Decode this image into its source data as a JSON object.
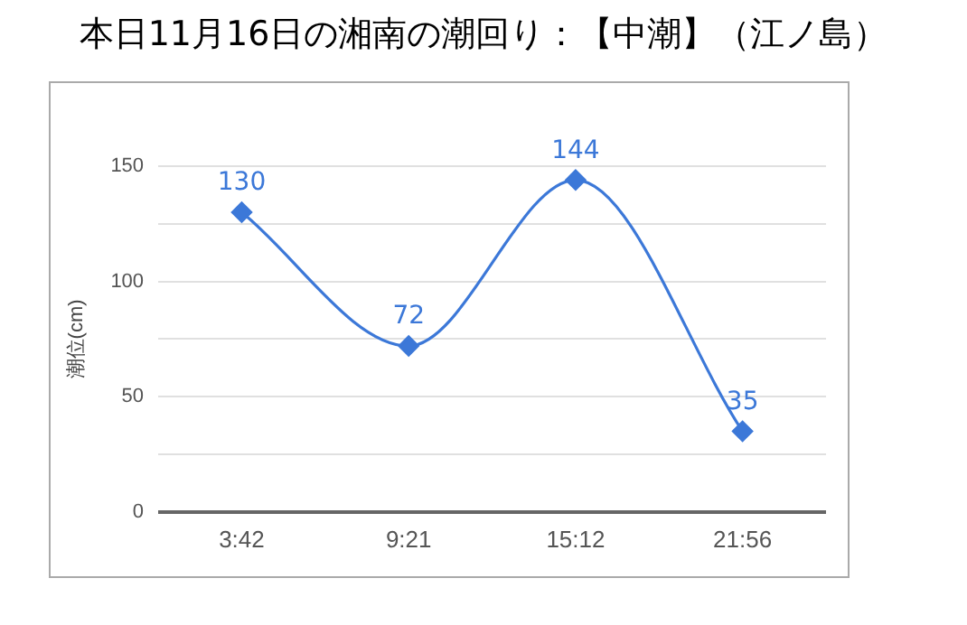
{
  "chart_data": {
    "type": "line",
    "title": "本日11月16日の湘南の潮回り：【中潮】（江ノ島）",
    "ylabel": "潮位(cm)",
    "categories": [
      "3:42",
      "9:21",
      "15:12",
      "21:56"
    ],
    "series": [
      {
        "color": "#3c78d8",
        "values": [
          130,
          72,
          144,
          35
        ]
      }
    ],
    "ylim": [
      0,
      150
    ],
    "yticks": [
      0,
      {
        "value": 25,
        "label": null
      },
      50,
      {
        "value": 75,
        "label": null
      },
      100,
      {
        "value": 125,
        "label": null
      },
      150
    ],
    "grid": "y",
    "legend": false,
    "marker": "diamond",
    "line_style": "solid",
    "data_labels": true
  }
}
